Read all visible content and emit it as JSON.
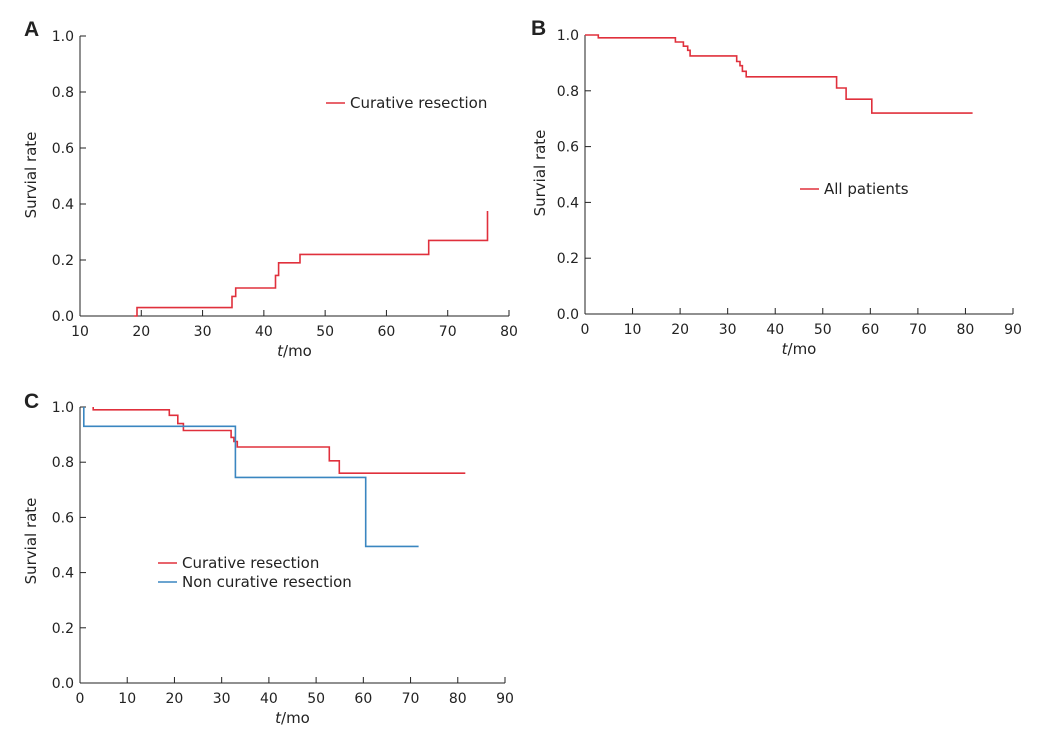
{
  "colors": {
    "curative": "#e0303c",
    "non_curative": "#3a86c0",
    "axis": "#222222"
  },
  "chart_data": [
    {
      "panel": "A",
      "type": "line",
      "step": true,
      "xlabel_italic": "t",
      "xlabel_rest": "/mo",
      "ylabel": "Survial rate",
      "xlim": [
        10,
        80
      ],
      "ylim": [
        0.0,
        1.0
      ],
      "xticks": [
        10,
        20,
        30,
        40,
        50,
        60,
        70,
        80
      ],
      "yticks": [
        "0.0",
        "0.2",
        "0.4",
        "0.6",
        "0.8",
        "1.0"
      ],
      "legend_position": "top-right",
      "series": [
        {
          "name": "Curative resection",
          "color_key": "curative",
          "x": [
            18.8,
            19.3,
            33.1,
            34.8,
            35.4,
            41.9,
            42.4,
            45.9,
            66.9,
            76.5
          ],
          "y": [
            0.0,
            0.03,
            0.03,
            0.07,
            0.1,
            0.145,
            0.19,
            0.22,
            0.27,
            0.375
          ]
        }
      ]
    },
    {
      "panel": "B",
      "type": "line",
      "step": true,
      "xlabel_italic": "t",
      "xlabel_rest": "/mo",
      "ylabel": "Survial rate",
      "xlim": [
        0,
        90
      ],
      "ylim": [
        0.0,
        1.0
      ],
      "xticks": [
        0,
        10,
        20,
        30,
        40,
        50,
        60,
        70,
        80,
        90
      ],
      "yticks": [
        "0.0",
        "0.2",
        "0.4",
        "0.6",
        "0.8",
        "1.0"
      ],
      "legend_position": "center-right",
      "series": [
        {
          "name": "All patients",
          "color_key": "curative",
          "x": [
            0,
            1.0,
            2.8,
            19.0,
            20.7,
            21.6,
            22.1,
            31.9,
            32.6,
            33.1,
            33.9,
            34.4,
            52.9,
            54.9,
            60.3,
            81.5
          ],
          "y": [
            1.0,
            1.0,
            0.99,
            0.975,
            0.96,
            0.945,
            0.925,
            0.905,
            0.89,
            0.87,
            0.85,
            0.85,
            0.81,
            0.77,
            0.72,
            0.72
          ]
        }
      ]
    },
    {
      "panel": "C",
      "type": "line",
      "step": true,
      "xlabel_italic": "t",
      "xlabel_rest": "/mo",
      "ylabel": "Survial rate",
      "xlim": [
        0,
        90
      ],
      "ylim": [
        0.0,
        1.0
      ],
      "xticks": [
        0,
        10,
        20,
        30,
        40,
        50,
        60,
        70,
        80,
        90
      ],
      "yticks": [
        "0.0",
        "0.2",
        "0.4",
        "0.6",
        "0.8",
        "1.0"
      ],
      "legend_position": "center-left",
      "series": [
        {
          "name": "Curative resection",
          "color_key": "curative",
          "x": [
            2.8,
            2.8,
            18.9,
            20.7,
            21.9,
            32.0,
            32.6,
            33.3,
            52.8,
            54.9,
            81.6
          ],
          "y": [
            1.0,
            0.99,
            0.97,
            0.94,
            0.915,
            0.89,
            0.875,
            0.855,
            0.805,
            0.76,
            0.76
          ]
        },
        {
          "name": "Non curative resection",
          "color_key": "non_curative",
          "x": [
            0.8,
            0.8,
            32.9,
            60.5,
            71.7
          ],
          "y": [
            1.0,
            0.93,
            0.745,
            0.495,
            0.495
          ]
        }
      ]
    }
  ]
}
